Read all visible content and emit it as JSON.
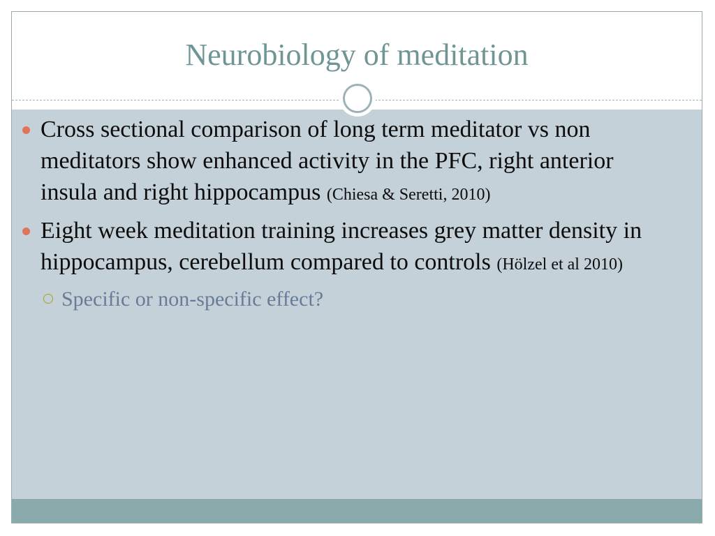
{
  "slide": {
    "title": "Neurobiology of meditation",
    "bullets": [
      {
        "text": "Cross sectional comparison of long term meditator vs non meditators show enhanced activity in the PFC, right anterior insula and right hippocampus ",
        "citation": "(Chiesa & Seretti, 2010)"
      },
      {
        "text": "Eight week meditation training increases grey matter density in hippocampus, cerebellum compared to controls ",
        "citation": "(Hölzel et al 2010)"
      }
    ],
    "sub_bullet": "Specific or non-specific effect?"
  },
  "colors": {
    "title": "#6f9595",
    "content_background": "#c5d1d8",
    "footer_band": "#8aabab",
    "bullet": "#e0745a",
    "sub_bullet_text": "#6a7a99",
    "sub_bullet_marker": "#a8a028"
  },
  "icons": {
    "bullet_marker": "filled-circle-bullet",
    "sub_bullet_marker": "hollow-circle-bullet",
    "title_ornament": "ring-ornament"
  }
}
